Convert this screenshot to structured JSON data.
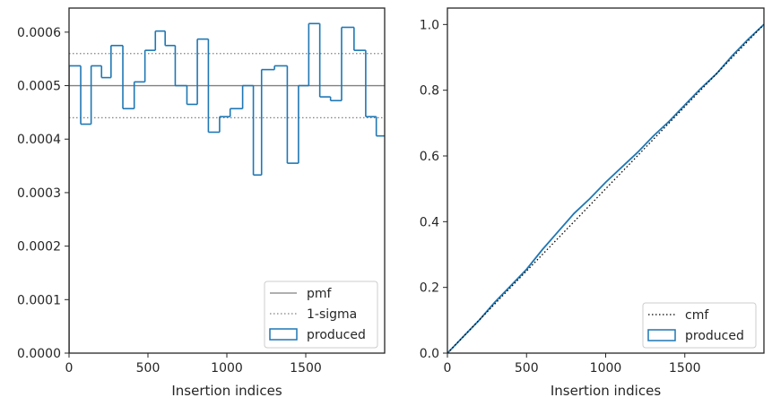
{
  "chart_data": [
    {
      "type": "histogram-step",
      "xlabel": "Insertion indices",
      "ylabel": "",
      "xlim": [
        0,
        2000
      ],
      "ylim": [
        0,
        0.000645
      ],
      "xticks": [
        0,
        500,
        1000,
        1500
      ],
      "xtick_labels": [
        "0",
        "500",
        "1000",
        "1500"
      ],
      "yticks": [
        0,
        0.0001,
        0.0002,
        0.0003,
        0.0004,
        0.0005,
        0.0006
      ],
      "ytick_labels": [
        "0.0000",
        "0.0001",
        "0.0002",
        "0.0003",
        "0.0004",
        "0.0005",
        "0.0006"
      ],
      "pmf": 0.0005,
      "sigma_band": [
        0.00044,
        0.00056
      ],
      "bin_edges": [
        0,
        74,
        140,
        206,
        266,
        341,
        413,
        481,
        547,
        609,
        673,
        747,
        813,
        883,
        954,
        1021,
        1100,
        1168,
        1220,
        1302,
        1383,
        1454,
        1519,
        1589,
        1657,
        1727,
        1806,
        1880,
        1947,
        2000
      ],
      "series": [
        {
          "name": "produced",
          "color": "#1f77b4",
          "values": [
            0.000537,
            0.000428,
            0.000537,
            0.000515,
            0.000575,
            0.000457,
            0.000507,
            0.000566,
            0.000602,
            0.000575,
            0.0005,
            0.000465,
            0.000587,
            0.000413,
            0.000442,
            0.000457,
            0.0005,
            0.000333,
            0.00053,
            0.000537,
            0.000355,
            0.0005,
            0.000616,
            0.000479,
            0.000472,
            0.000609,
            0.000566,
            0.000442,
            0.000406
          ]
        }
      ],
      "legend": {
        "placement": "lower-right",
        "entries": [
          {
            "label": "pmf",
            "style": "solid-line",
            "color": "#808080"
          },
          {
            "label": "1-sigma",
            "style": "dotted-line",
            "color": "#808080"
          },
          {
            "label": "produced",
            "style": "patch",
            "color": "#1f77b4"
          }
        ]
      }
    },
    {
      "type": "line",
      "xlabel": "Insertion indices",
      "ylabel": "",
      "xlim": [
        0,
        2000
      ],
      "ylim": [
        0,
        1.05
      ],
      "xticks": [
        0,
        500,
        1000,
        1500
      ],
      "xtick_labels": [
        "0",
        "500",
        "1000",
        "1500"
      ],
      "yticks": [
        0,
        0.2,
        0.4,
        0.6,
        0.8,
        1.0
      ],
      "ytick_labels": [
        "0.0",
        "0.2",
        "0.4",
        "0.6",
        "0.8",
        "1.0"
      ],
      "series": [
        {
          "name": "cmf",
          "color": "#000000",
          "style": "dotted",
          "x": [
            0,
            2000
          ],
          "y": [
            0,
            1.0
          ]
        },
        {
          "name": "produced",
          "color": "#1f77b4",
          "style": "solid",
          "x": [
            0,
            100,
            200,
            300,
            400,
            500,
            600,
            700,
            800,
            900,
            1000,
            1100,
            1200,
            1300,
            1400,
            1500,
            1600,
            1700,
            1800,
            1900,
            2000
          ],
          "y": [
            0,
            0.05,
            0.1,
            0.155,
            0.205,
            0.255,
            0.315,
            0.37,
            0.425,
            0.47,
            0.52,
            0.565,
            0.61,
            0.66,
            0.705,
            0.755,
            0.805,
            0.85,
            0.905,
            0.955,
            1.0
          ]
        }
      ],
      "legend": {
        "placement": "lower-right",
        "entries": [
          {
            "label": "cmf",
            "style": "dotted-line",
            "color": "#000000"
          },
          {
            "label": "produced",
            "style": "patch",
            "color": "#1f77b4"
          }
        ]
      }
    }
  ]
}
